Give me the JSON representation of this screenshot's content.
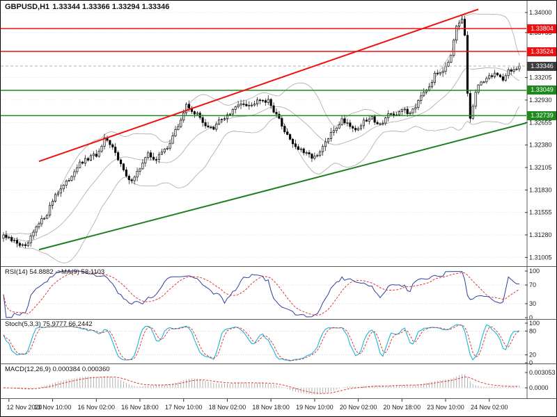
{
  "window": {
    "symbol": "GBPUSD,H1",
    "ohlc_line": "1.33344 1.33366 1.33294 1.33346"
  },
  "colors": {
    "background": "#ffffff",
    "grid": "#d9d9d9",
    "axis_text": "#1a1a1a",
    "separator": "#5a5a5a",
    "candle_up_fill": "#ffffff",
    "candle_down_fill": "#000000",
    "candle_stroke": "#000000",
    "bollinger": "#a8a8a8",
    "trend_red": "#ee1111",
    "trend_green": "#1e7d1e",
    "level_red": "#ee1111",
    "level_green": "#1e8a1e",
    "current_badge": "#3c3c3c",
    "current_line": "#999999",
    "indicator_level": "#c8c8c8",
    "rsi_line": "#2e3f9e",
    "rsi_ma": "#dd2222",
    "stoch_k": "#18b6d8",
    "stoch_d": "#dd2222",
    "macd_hist": "#b0b0b0",
    "macd_signal": "#dd2222"
  },
  "chart_data": {
    "type": "candlestick",
    "symbol": "GBPUSD",
    "timeframe": "H1",
    "title": "GBPUSD,H1",
    "ohlc_display": {
      "open": "1.33344",
      "high": "1.33366",
      "low": "1.33294",
      "close": "1.33346"
    },
    "price_axis": {
      "min": 1.30915,
      "max": 1.3406,
      "ticks": [
        {
          "label": "1.34000",
          "value": 1.34
        },
        {
          "label": "1.33755",
          "value": 1.33755
        },
        {
          "label": "1.33205",
          "value": 1.33205
        },
        {
          "label": "1.32930",
          "value": 1.3293
        },
        {
          "label": "1.32655",
          "value": 1.32655
        },
        {
          "label": "1.32380",
          "value": 1.3238
        },
        {
          "label": "1.32105",
          "value": 1.32105
        },
        {
          "label": "1.31830",
          "value": 1.3183
        },
        {
          "label": "1.31555",
          "value": 1.31555
        },
        {
          "label": "1.31280",
          "value": 1.3128
        },
        {
          "label": "1.31005",
          "value": 1.31005
        }
      ]
    },
    "time_axis": {
      "labels": [
        {
          "text": "12 Nov 2020",
          "index": 2
        },
        {
          "text": "13 Nov 10:00",
          "index": 18
        },
        {
          "text": "16 Nov 02:00",
          "index": 34
        },
        {
          "text": "16 Nov 18:00",
          "index": 50
        },
        {
          "text": "17 Nov 10:00",
          "index": 66
        },
        {
          "text": "18 Nov 02:00",
          "index": 82
        },
        {
          "text": "18 Nov 18:00",
          "index": 98
        },
        {
          "text": "19 Nov 10:00",
          "index": 114
        },
        {
          "text": "20 Nov 02:00",
          "index": 130
        },
        {
          "text": "20 Nov 18:00",
          "index": 146
        },
        {
          "text": "23 Nov 10:00",
          "index": 162
        },
        {
          "text": "24 Nov 02:00",
          "index": 178
        }
      ]
    },
    "candles_approx": {
      "note": "H1 closes read from chart; candles interpolated between these [index, close] anchors",
      "count": 190,
      "anchors": [
        [
          0,
          1.3128
        ],
        [
          2,
          1.3122
        ],
        [
          5,
          1.3119
        ],
        [
          8,
          1.3112
        ],
        [
          12,
          1.3136
        ],
        [
          16,
          1.3155
        ],
        [
          19,
          1.3178
        ],
        [
          23,
          1.3191
        ],
        [
          27,
          1.3212
        ],
        [
          31,
          1.3221
        ],
        [
          35,
          1.3228
        ],
        [
          37,
          1.3244
        ],
        [
          41,
          1.3231
        ],
        [
          44,
          1.3206
        ],
        [
          46,
          1.3193
        ],
        [
          49,
          1.3205
        ],
        [
          53,
          1.3226
        ],
        [
          56,
          1.3221
        ],
        [
          60,
          1.3236
        ],
        [
          64,
          1.3261
        ],
        [
          67,
          1.3286
        ],
        [
          69,
          1.3281
        ],
        [
          72,
          1.3271
        ],
        [
          74,
          1.3263
        ],
        [
          77,
          1.3256
        ],
        [
          79,
          1.3268
        ],
        [
          83,
          1.3276
        ],
        [
          87,
          1.3291
        ],
        [
          91,
          1.3286
        ],
        [
          93,
          1.3296
        ],
        [
          97,
          1.3291
        ],
        [
          100,
          1.3276
        ],
        [
          102,
          1.3261
        ],
        [
          105,
          1.3246
        ],
        [
          107,
          1.3236
        ],
        [
          111,
          1.3226
        ],
        [
          115,
          1.3223
        ],
        [
          118,
          1.3241
        ],
        [
          121,
          1.3256
        ],
        [
          124,
          1.3269
        ],
        [
          127,
          1.3263
        ],
        [
          129,
          1.3256
        ],
        [
          132,
          1.3266
        ],
        [
          135,
          1.3271
        ],
        [
          138,
          1.3263
        ],
        [
          141,
          1.3276
        ],
        [
          143,
          1.3271
        ],
        [
          146,
          1.3283
        ],
        [
          148,
          1.3276
        ],
        [
          151,
          1.3286
        ],
        [
          153,
          1.3301
        ],
        [
          156,
          1.3311
        ],
        [
          158,
          1.3323
        ],
        [
          161,
          1.3331
        ],
        [
          164,
          1.3346
        ],
        [
          166,
          1.3381
        ],
        [
          168,
          1.3391
        ],
        [
          169,
          1.3371
        ],
        [
          170,
          1.3301
        ],
        [
          171,
          1.3271
        ],
        [
          173,
          1.3301
        ],
        [
          175,
          1.3316
        ],
        [
          178,
          1.3321
        ],
        [
          180,
          1.3326
        ],
        [
          183,
          1.3319
        ],
        [
          185,
          1.3329
        ],
        [
          188,
          1.3331
        ],
        [
          189,
          1.33346
        ]
      ]
    },
    "levels": [
      {
        "label": "1.33804",
        "value": 1.33804,
        "color_key": "level_red"
      },
      {
        "label": "1.33524",
        "value": 1.33524,
        "color_key": "level_red"
      },
      {
        "label": "1.33049",
        "value": 1.33049,
        "color_key": "level_green"
      },
      {
        "label": "1.32739",
        "value": 1.32739,
        "color_key": "level_green"
      }
    ],
    "current_price": {
      "label": "1.33346",
      "value": 1.33346
    },
    "trendlines": [
      {
        "color_key": "trend_red",
        "width": 2,
        "from": {
          "index": 13,
          "price": 1.3218
        },
        "to": {
          "index": 174,
          "price": 1.3404
        }
      },
      {
        "color_key": "trend_green",
        "width": 2,
        "from": {
          "index": 13,
          "price": 1.311
        },
        "to": {
          "index": 192,
          "price": 1.3265
        }
      }
    ],
    "indicators": [
      {
        "name": "RSI",
        "label": "RSI(14) 54.8882  ->MA(9) 53.1103",
        "period": 14,
        "ma_period": 9,
        "value": 54.8882,
        "ma_value": 53.1103,
        "level_lines": [
          70,
          30
        ],
        "axis_ticks": [
          100,
          70,
          30,
          0
        ]
      },
      {
        "name": "Stochastic",
        "label": "Stoch(5,3,3) 75.9777 66.2442",
        "params": [
          5,
          3,
          3
        ],
        "value": 75.9777,
        "signal_value": 66.2442,
        "level_lines": [
          80,
          20
        ],
        "axis_ticks": [
          100,
          80,
          20,
          0
        ]
      },
      {
        "name": "MACD",
        "label": "MACD(12,26,9) 0.000384 0.000360",
        "params": [
          12,
          26,
          9
        ],
        "value": 0.000384,
        "signal_value": 0.00036,
        "axis_ticks": [
          {
            "label": "0.003053",
            "value": 0.003053
          },
          {
            "label": "0.0000",
            "value": 0
          }
        ]
      }
    ]
  }
}
